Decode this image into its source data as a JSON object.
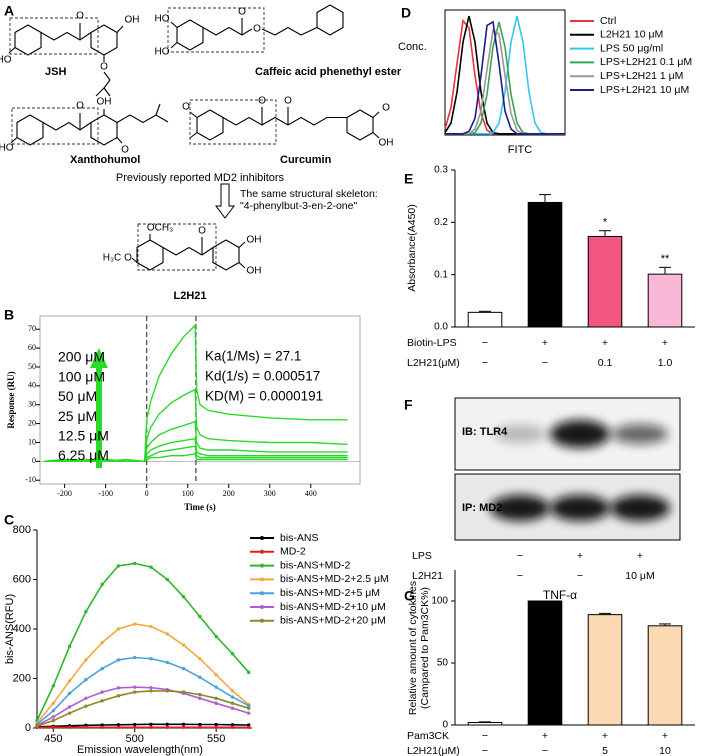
{
  "panel_labels": [
    "A",
    "B",
    "C",
    "D",
    "E",
    "F",
    "G"
  ],
  "panel_a": {
    "molecules": [
      {
        "name": "JSH",
        "atoms": [
          "O",
          "OH",
          "HO",
          "O"
        ]
      },
      {
        "name": "Caffeic acid phenethyl ester",
        "atoms": [
          "O",
          "O",
          "HO",
          "HO"
        ]
      },
      {
        "name": "Xanthohumol",
        "atoms": [
          "O",
          "OH",
          "HO",
          "O"
        ]
      },
      {
        "name": "Curcumin",
        "atoms": [
          "O",
          "O",
          "O",
          "O",
          "OH"
        ]
      }
    ],
    "caption": "Previously reported MD2 inhibitors",
    "skeleton_note": [
      "The same structural skeleton:",
      "\"4-phenylbut-3-en-2-one\""
    ],
    "product": {
      "name": "L2H21",
      "atoms": [
        "OCH₃",
        "H₃C",
        "O",
        "O",
        "OH",
        "OH"
      ]
    }
  },
  "panel_f": {
    "blots": [
      "IB: TLR4",
      "IP: MD2"
    ],
    "condition_rows": [
      {
        "label": "LPS",
        "values": [
          "−",
          "+",
          "+"
        ]
      },
      {
        "label": "L2H21",
        "values": [
          "−",
          "−",
          "10 μM"
        ]
      }
    ]
  },
  "chart_data": [
    {
      "type": "line",
      "panel": "B",
      "x_label": "Time (s)",
      "y_label": "Response (RU)",
      "x": [
        -250,
        -200,
        -150,
        -100,
        -50,
        -5,
        0,
        10,
        30,
        60,
        90,
        118,
        122,
        130,
        150,
        200,
        300,
        400,
        490
      ],
      "xlim": [
        -260,
        520
      ],
      "ylim": [
        -12,
        77
      ],
      "xticks": [
        -200,
        -100,
        0,
        100,
        200,
        300,
        400
      ],
      "yticks": [
        -10,
        0,
        10,
        20,
        30,
        40,
        50,
        60,
        70
      ],
      "series": [
        {
          "name": "200 μM",
          "color": "#2bd92b",
          "values": [
            0,
            1,
            0,
            1,
            0,
            0,
            22,
            32,
            45,
            57,
            66,
            72,
            38,
            30,
            27,
            25,
            23,
            22,
            22
          ]
        },
        {
          "name": "100 μM",
          "color": "#2bd92b",
          "values": [
            0,
            0,
            1,
            0,
            0,
            0,
            12,
            18,
            25,
            31,
            35,
            38,
            18,
            14,
            12,
            11,
            10,
            10,
            9
          ]
        },
        {
          "name": "50 μM",
          "color": "#2bd92b",
          "values": [
            0,
            1,
            0,
            0,
            1,
            0,
            7,
            10,
            14,
            17,
            19,
            21,
            10,
            7,
            6,
            6,
            5,
            5,
            5
          ]
        },
        {
          "name": "25 μM",
          "color": "#2bd92b",
          "values": [
            0,
            0,
            0,
            1,
            0,
            0,
            4,
            6,
            8,
            10,
            11,
            12,
            5,
            4,
            3,
            3,
            3,
            3,
            3
          ]
        },
        {
          "name": "12.5 μM",
          "color": "#2bd92b",
          "values": [
            0,
            0,
            1,
            0,
            0,
            0,
            2,
            3,
            5,
            6,
            7,
            8,
            3,
            2,
            2,
            2,
            2,
            2,
            2
          ]
        },
        {
          "name": "6.25 μM",
          "color": "#2bd92b",
          "values": [
            0,
            0,
            0,
            0,
            0,
            0,
            1,
            2,
            2,
            3,
            3,
            4,
            1,
            1,
            1,
            1,
            1,
            1,
            1
          ]
        }
      ],
      "annotations": [
        "Ka(1/Ms) = 27.1",
        "Kd(1/s) = 0.000517",
        "KD(M) = 0.0000191"
      ]
    },
    {
      "type": "line",
      "panel": "C",
      "x_label": "Emission wavelength(nm)",
      "y_label": "bis-ANS(RFU)",
      "markers": true,
      "x": [
        440,
        450,
        460,
        470,
        480,
        490,
        500,
        510,
        520,
        530,
        540,
        550,
        560,
        570
      ],
      "xlim": [
        440,
        572
      ],
      "ylim": [
        0,
        800
      ],
      "xticks": [
        450,
        500,
        550
      ],
      "yticks": [
        0,
        200,
        400,
        600,
        800
      ],
      "series": [
        {
          "name": "bis-ANS",
          "color": "#000000",
          "values": [
            5,
            7,
            9,
            11,
            12,
            13,
            14,
            15,
            15,
            15,
            14,
            14,
            13,
            12
          ]
        },
        {
          "name": "MD-2",
          "color": "#e02020",
          "values": [
            3,
            3,
            3,
            3,
            3,
            3,
            3,
            3,
            3,
            3,
            3,
            3,
            3,
            3
          ]
        },
        {
          "name": "bis-ANS+MD-2",
          "color": "#2db82d",
          "values": [
            30,
            170,
            330,
            470,
            580,
            655,
            665,
            650,
            600,
            530,
            450,
            370,
            300,
            225
          ]
        },
        {
          "name": "bis-ANS+MD-2+2.5 μM",
          "color": "#f5a742",
          "values": [
            20,
            100,
            190,
            275,
            345,
            400,
            420,
            410,
            380,
            335,
            280,
            215,
            150,
            95
          ]
        },
        {
          "name": "bis-ANS+MD-2+5 μM",
          "color": "#4aa3df",
          "values": [
            15,
            70,
            140,
            195,
            240,
            275,
            285,
            280,
            265,
            240,
            205,
            165,
            125,
            90
          ]
        },
        {
          "name": "bis-ANS+MD-2+10 μM",
          "color": "#b05fd0",
          "values": [
            10,
            45,
            85,
            120,
            145,
            162,
            165,
            163,
            155,
            140,
            120,
            100,
            80,
            60
          ]
        },
        {
          "name": "bis-ANS+MD-2+20 μM",
          "color": "#8a8a2a",
          "values": [
            8,
            30,
            60,
            88,
            110,
            130,
            145,
            150,
            150,
            145,
            135,
            120,
            100,
            80
          ]
        }
      ]
    },
    {
      "type": "line",
      "panel": "D",
      "x_label": "FITC",
      "y_label": "Conc.",
      "x": [
        0,
        5,
        10,
        15,
        20,
        25,
        30,
        35,
        40,
        45,
        50,
        55,
        60,
        65,
        70,
        75,
        80,
        85,
        90,
        95,
        100
      ],
      "xlim": [
        0,
        100
      ],
      "ylim": [
        0,
        105
      ],
      "series": [
        {
          "name": "Ctrl",
          "color": "#e8323c",
          "values": [
            5,
            23,
            60,
            96,
            90,
            50,
            18,
            4,
            1,
            1,
            1,
            1,
            1,
            1,
            1,
            1,
            1,
            1,
            1,
            1,
            1
          ]
        },
        {
          "name": "L2H21  10 μM",
          "color": "#000000",
          "values": [
            2,
            10,
            36,
            78,
            100,
            78,
            36,
            10,
            2,
            1,
            1,
            1,
            1,
            1,
            1,
            1,
            1,
            1,
            1,
            1,
            1
          ]
        },
        {
          "name": "LPS  50 μg/ml",
          "color": "#33c7f0",
          "values": [
            1,
            1,
            1,
            1,
            1,
            1,
            1,
            1,
            2,
            10,
            36,
            78,
            100,
            78,
            36,
            10,
            2,
            1,
            1,
            1,
            1
          ]
        },
        {
          "name": "LPS+L2H21 0.1 μM",
          "color": "#3aa35a",
          "values": [
            1,
            1,
            1,
            1,
            1,
            2,
            10,
            34,
            74,
            95,
            74,
            34,
            10,
            2,
            1,
            1,
            1,
            1,
            1,
            1,
            1
          ]
        },
        {
          "name": "LPS+L2H21  1 μM",
          "color": "#999999",
          "values": [
            1,
            1,
            1,
            1,
            1,
            5,
            20,
            55,
            88,
            85,
            50,
            18,
            4,
            1,
            1,
            1,
            1,
            1,
            1,
            1,
            1
          ]
        },
        {
          "name": "LPS+L2H21  10 μM",
          "color": "#1c1c8c",
          "values": [
            1,
            1,
            1,
            1,
            3,
            14,
            50,
            92,
            95,
            60,
            20,
            5,
            1,
            1,
            1,
            1,
            1,
            1,
            1,
            1,
            1
          ]
        }
      ]
    },
    {
      "type": "bar",
      "panel": "E",
      "y_label": "Absorbance(A450)",
      "values": [
        0.028,
        0.238,
        0.173,
        0.101
      ],
      "errors": [
        0.002,
        0.015,
        0.011,
        0.013
      ],
      "colors": [
        "#ffffff",
        "#000000",
        "#f2557f",
        "#f9b9d6"
      ],
      "value_annotations": [
        null,
        null,
        "*",
        "**"
      ],
      "ylim": [
        0,
        0.3
      ],
      "yticks": [
        {
          "value": 0,
          "label": "0.0"
        },
        0.1,
        0.2,
        0.3
      ],
      "condition_rows": [
        {
          "label": "Biotin-LPS",
          "values": [
            "−",
            "+",
            "+",
            "+"
          ]
        },
        {
          "label": "L2H21(μM)",
          "values": [
            "−",
            "−",
            "0.1",
            "1.0"
          ]
        }
      ]
    },
    {
      "type": "bar",
      "panel": "G",
      "title": "TNF-α",
      "y_label": [
        "Relative amount of cytokines",
        "(Campared to Pam3CK%)"
      ],
      "values": [
        2,
        100,
        89,
        80
      ],
      "errors": [
        0.5,
        0,
        1,
        1.5
      ],
      "colors": [
        "#ffffff",
        "#000000",
        "#fbd9b3",
        "#fbd9b3"
      ],
      "ylim": [
        0,
        125
      ],
      "yticks": [
        0,
        50,
        100
      ],
      "condition_rows": [
        {
          "label": "Pam3CK",
          "values": [
            "−",
            "+",
            "+",
            "+"
          ]
        },
        {
          "label": "L2H21(μM)",
          "values": [
            "−",
            "−",
            "5",
            "10"
          ]
        }
      ]
    }
  ]
}
